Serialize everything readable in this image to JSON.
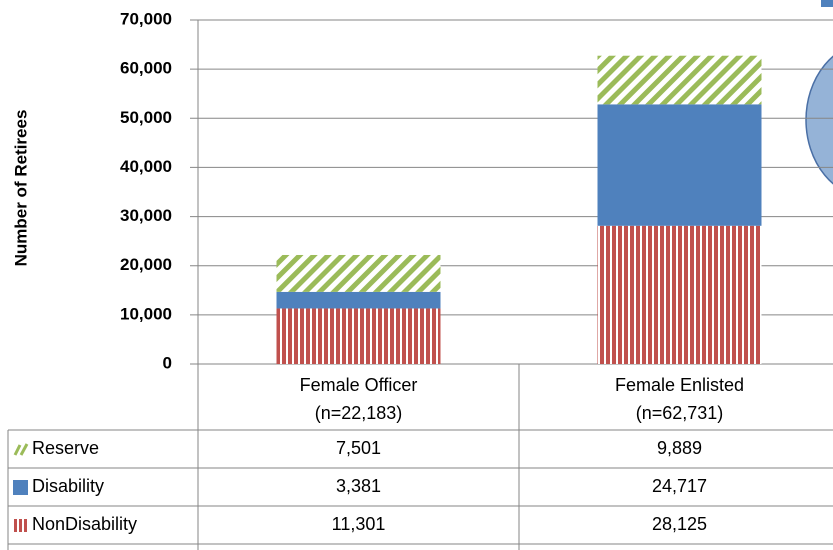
{
  "chart_data": {
    "type": "bar",
    "stacked": true,
    "ylabel": "Number of Retirees",
    "ylim": [
      0,
      70000
    ],
    "yticks": [
      "0",
      "10,000",
      "20,000",
      "30,000",
      "40,000",
      "50,000",
      "60,000",
      "70,000"
    ],
    "ytick_values": [
      0,
      10000,
      20000,
      30000,
      40000,
      50000,
      60000,
      70000
    ],
    "grid": true,
    "legend": "data-table",
    "categories": [
      {
        "line1": "Female Officer",
        "line2": "(n=22,183)"
      },
      {
        "line1": "Female Enlisted",
        "line2": "(n=62,731)"
      }
    ],
    "series": [
      {
        "name": "NonDisability",
        "color": "#c0504d",
        "pattern": "vertical-stripes",
        "values": [
          11301,
          28125
        ],
        "labels": [
          "11,301",
          "28,125"
        ]
      },
      {
        "name": "Disability",
        "color": "#4f81bd",
        "pattern": "solid",
        "values": [
          3381,
          24717
        ],
        "labels": [
          "3,381",
          "24,717"
        ]
      },
      {
        "name": "Reserve",
        "color": "#9bbb59",
        "pattern": "diagonal-stripes",
        "values": [
          7501,
          9889
        ],
        "labels": [
          "7,501",
          "9,889"
        ]
      }
    ],
    "table_row_order": [
      "Reserve",
      "Disability",
      "NonDisability"
    ]
  }
}
